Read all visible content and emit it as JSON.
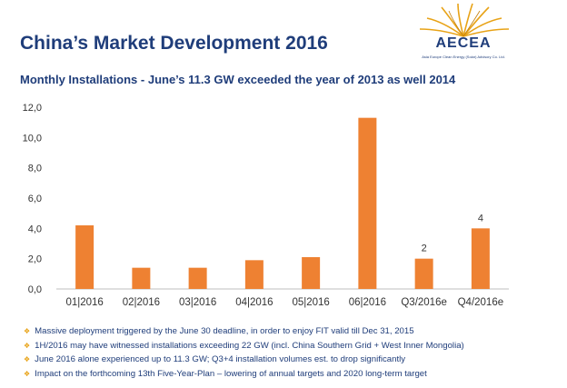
{
  "header": {
    "title": "China’s Market Development 2016",
    "logo_text": "AECEA",
    "logo_subtext": "Asia Europe Clean Energy (Solar) Advisory Co. Ltd."
  },
  "colors": {
    "bar": "#ee8132",
    "title": "#1f3d7a",
    "bullet": "#e8a317"
  },
  "chart_data": {
    "type": "bar",
    "title": "Monthly Installations - June’s 11.3 GW exceeded the year of 2013 as well 2014",
    "categories": [
      "01|2016",
      "02|2016",
      "03|2016",
      "04|2016",
      "05|2016",
      "06|2016",
      "Q3/2016e",
      "Q4/2016e"
    ],
    "values": [
      4.2,
      1.4,
      1.4,
      1.9,
      2.1,
      11.3,
      2.0,
      4.0
    ],
    "data_labels": [
      "",
      "",
      "",
      "",
      "",
      "",
      "2",
      "4"
    ],
    "ylim": [
      0,
      12
    ],
    "yticks": [
      "0,0",
      "2,0",
      "4,0",
      "6,0",
      "8,0",
      "10,0",
      "12,0"
    ],
    "ytick_values": [
      0,
      2,
      4,
      6,
      8,
      10,
      12
    ],
    "xlabel": "",
    "ylabel": "",
    "grid": false,
    "legend": "none"
  },
  "notes": [
    "Massive deployment triggered by the June 30 deadline, in order to enjoy FIT valid till Dec 31, 2015",
    "1H/2016 may have witnessed installations exceeding 22 GW (incl. China Southern Grid + West Inner Mongolia)",
    "June 2016 alone experienced up to 11.3 GW; Q3+4 installation volumes est. to drop significantly",
    "Impact on the forthcoming 13th Five-Year-Plan – lowering of annual targets and 2020 long-term target"
  ]
}
